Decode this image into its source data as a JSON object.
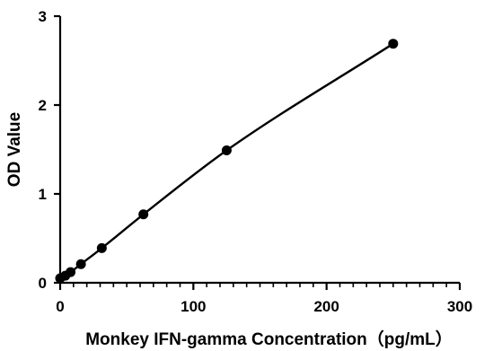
{
  "chart_data": {
    "type": "scatter",
    "xlabel": "Monkey IFN-gamma Concentration（pg/mL）",
    "ylabel": "OD Value",
    "xlim": [
      0,
      300
    ],
    "ylim": [
      0,
      3
    ],
    "x_ticks": [
      0,
      100,
      200,
      300
    ],
    "y_ticks": [
      0,
      1,
      2,
      3
    ],
    "x_minor_step": 10,
    "fit_curve": true,
    "grid": false,
    "legend": "none",
    "series": [
      {
        "x": [
          0,
          3.9,
          7.8,
          15.6,
          31.25,
          62.5,
          125,
          250
        ],
        "y": [
          0.05,
          0.08,
          0.12,
          0.21,
          0.39,
          0.77,
          1.49,
          2.69
        ]
      }
    ],
    "colors": {
      "line": "#000000",
      "points": "#000000"
    }
  }
}
